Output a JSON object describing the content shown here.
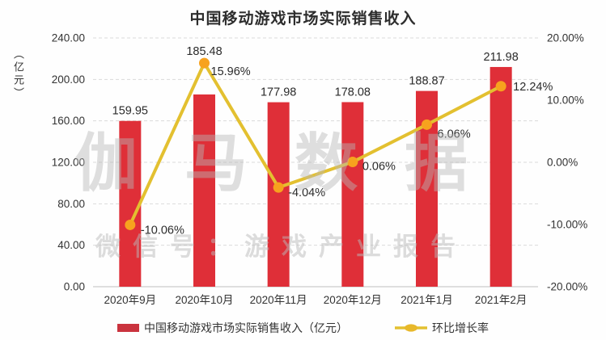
{
  "title": "中国移动游戏市场实际销售收入",
  "watermark": {
    "main": "伽马数据",
    "sub": "微信号：游戏产业报告"
  },
  "legend": {
    "bar_label": "中国移动游戏市场实际销售收入（亿元）",
    "line_label": "环比增长率"
  },
  "chart_data": {
    "type": "combo-bar-line",
    "title": "中国移动游戏市场实际销售收入",
    "categories": [
      "2020年9月",
      "2020年10月",
      "2020年11月",
      "2020年12月",
      "2021年1月",
      "2021年2月"
    ],
    "series": [
      {
        "name": "中国移动游戏市场实际销售收入（亿元）",
        "type": "bar",
        "axis": "left",
        "color": "#df2f38",
        "values": [
          159.95,
          185.48,
          177.98,
          178.08,
          188.87,
          211.98
        ],
        "labels": [
          "159.95",
          "185.48",
          "177.98",
          "178.08",
          "188.87",
          "211.98"
        ]
      },
      {
        "name": "环比增长率",
        "type": "line",
        "axis": "right",
        "color": "#e3c030",
        "marker_color": "#f7a21e",
        "values": [
          -10.06,
          15.96,
          -4.04,
          0.06,
          6.06,
          12.24
        ],
        "labels": [
          "-10.06%",
          "15.96%",
          "-4.04%",
          "0.06%",
          "6.06%",
          "12.24%"
        ]
      }
    ],
    "left_axis": {
      "label": "（亿元）",
      "min": 0,
      "max": 240,
      "step": 40,
      "ticks": [
        "240.00",
        "200.00",
        "160.00",
        "120.00",
        "80.00",
        "40.00",
        "0.00"
      ]
    },
    "right_axis": {
      "min": -20,
      "max": 20,
      "step": 10,
      "ticks": [
        "20.00%",
        "10.00%",
        "0.00%",
        "-10.00%",
        "-20.00%"
      ]
    },
    "grid": "horizontal-dashed",
    "grid_color": "#d9d9d9",
    "axis_line_color": "#bdbdbd",
    "legend_position": "bottom"
  }
}
